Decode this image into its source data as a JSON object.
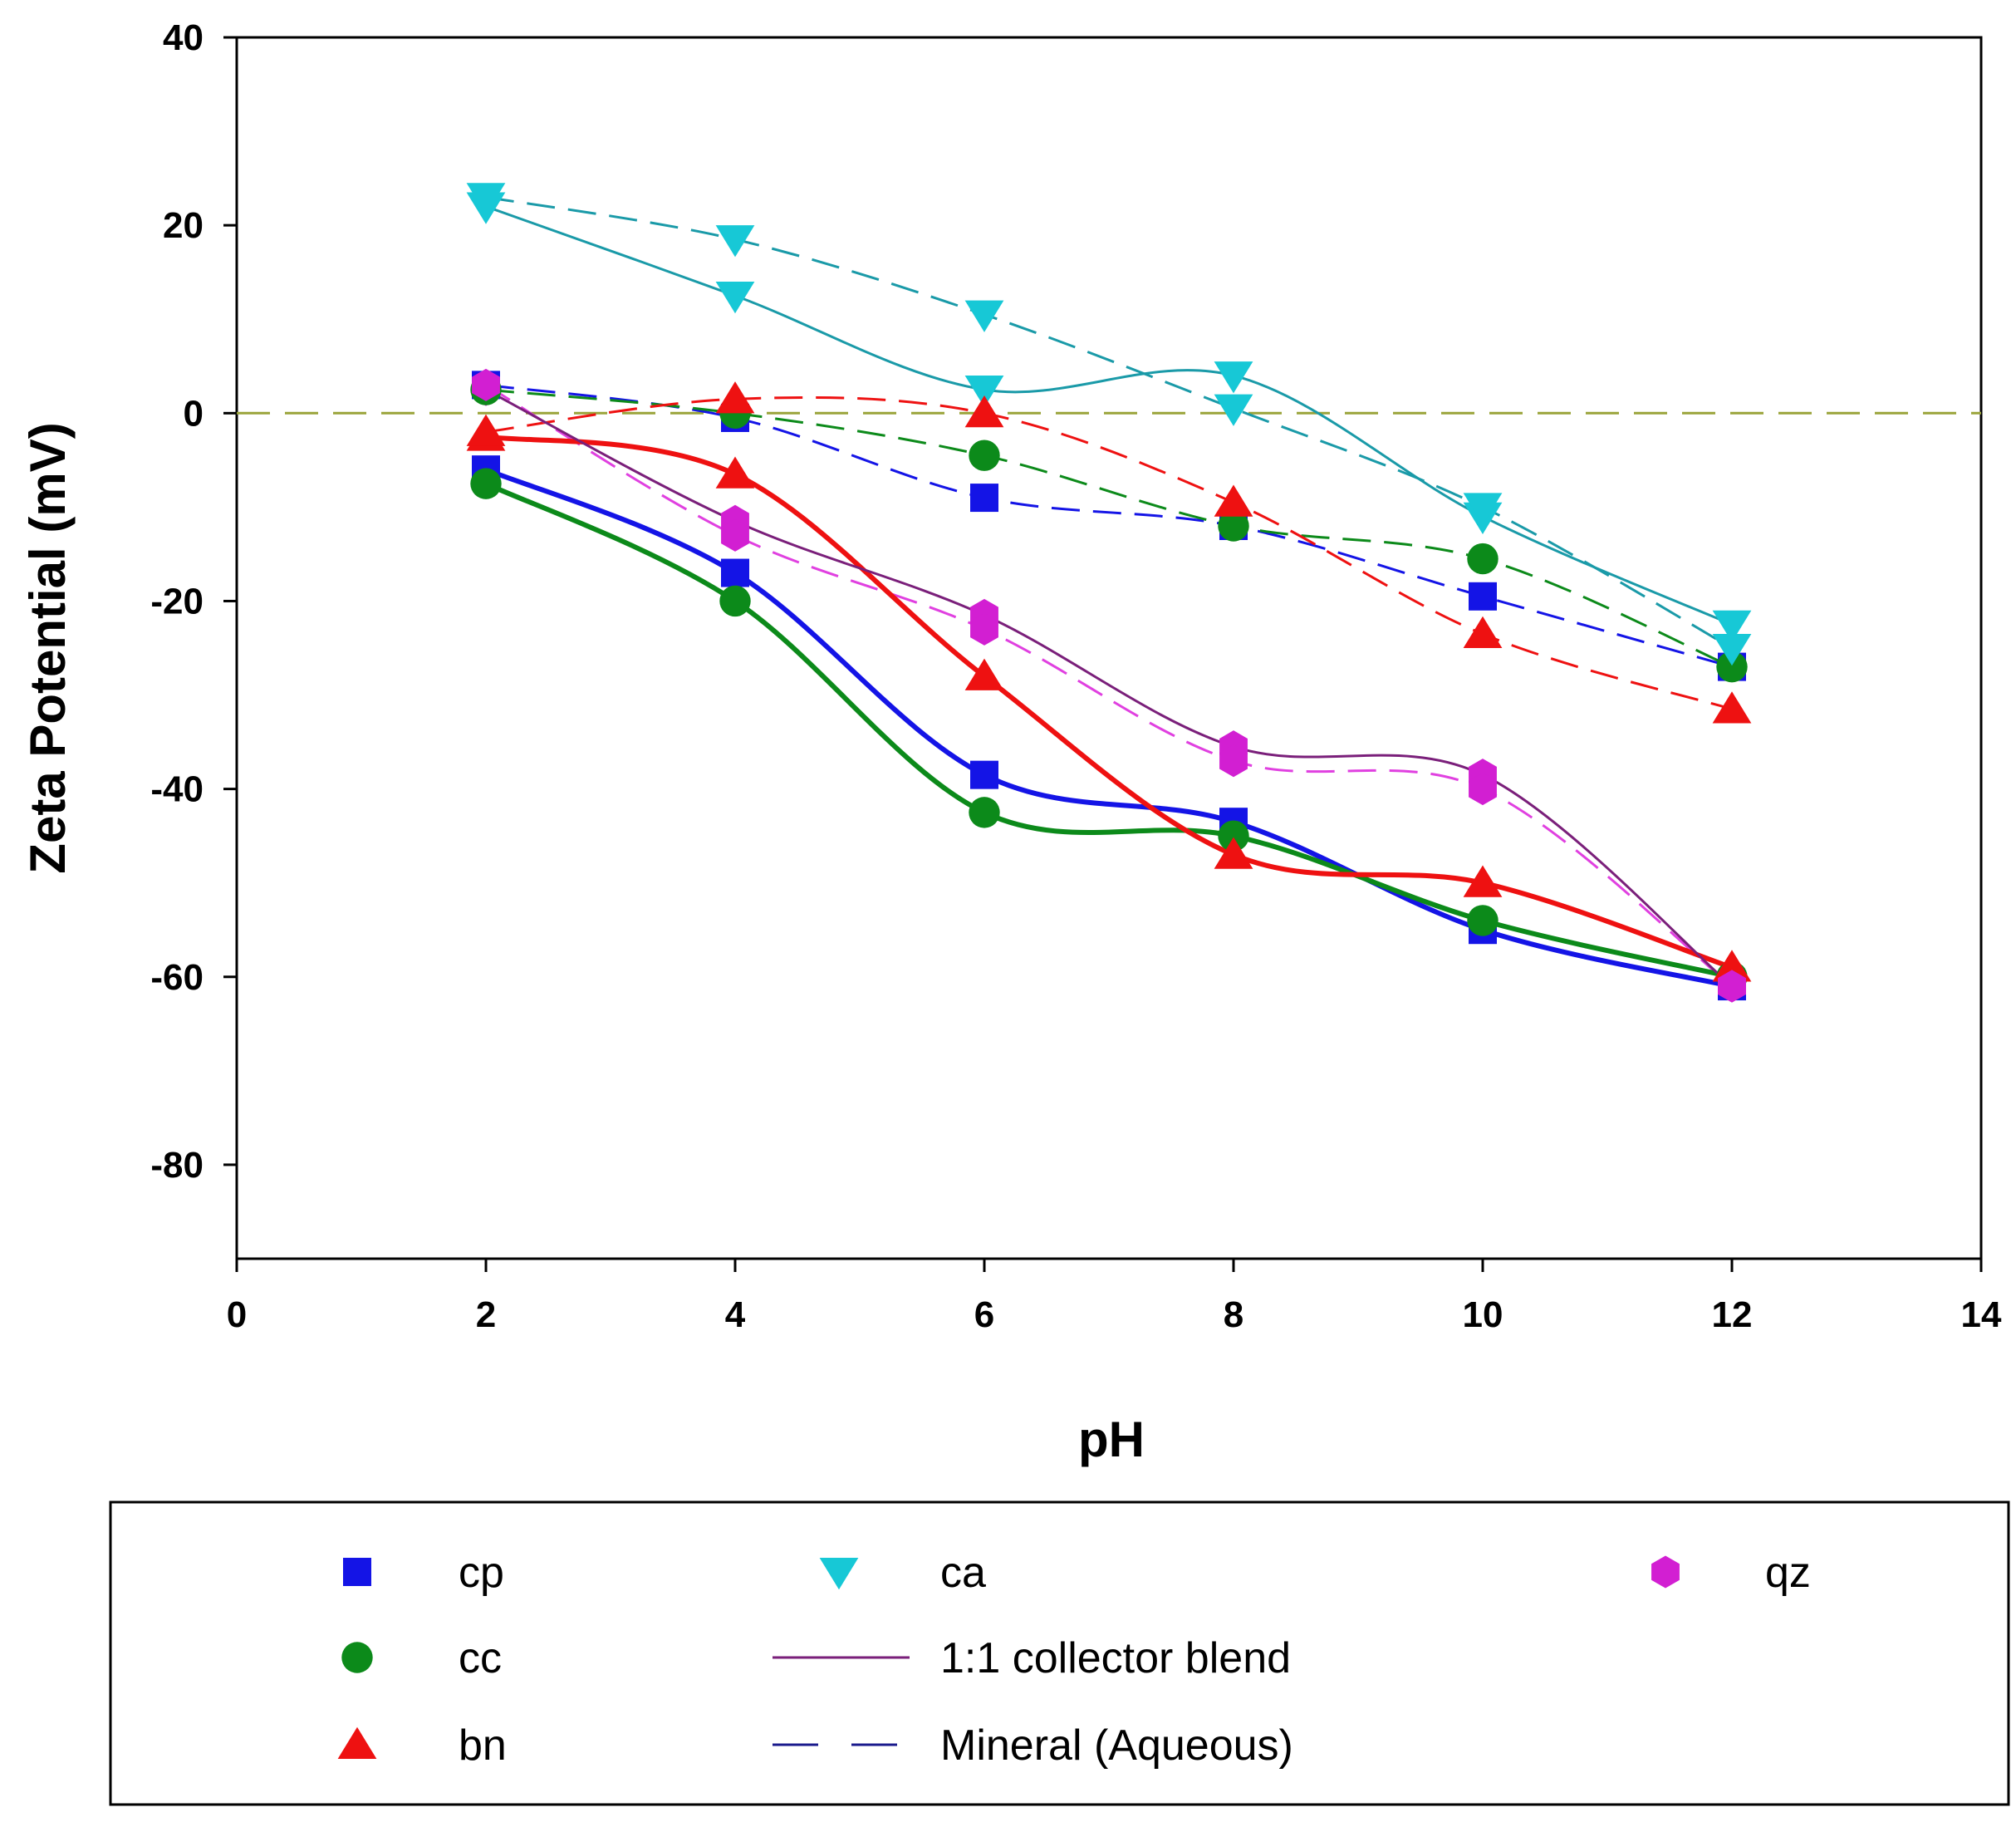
{
  "chart_data": {
    "type": "line",
    "xlabel": "pH",
    "ylabel": "Zeta Potential (mV)",
    "xlim": [
      0,
      14
    ],
    "ylim": [
      -90,
      40
    ],
    "x_ticks": [
      0,
      2,
      4,
      6,
      8,
      10,
      12,
      14
    ],
    "y_ticks": [
      -80,
      -60,
      -40,
      -20,
      0,
      20,
      40
    ],
    "reference_line": {
      "y": 0,
      "color": "#9aa43a"
    },
    "series": [
      {
        "name": "cp",
        "minerals": "cp",
        "color": "#1414e6",
        "line_color": "#1414e6",
        "marker": "square",
        "style": "solid",
        "x": [
          2,
          4,
          6,
          8,
          10,
          12
        ],
        "values": [
          -6,
          -17,
          -38.5,
          -43.5,
          -55,
          -61
        ]
      },
      {
        "name": "cc",
        "minerals": "cc",
        "color": "#0c8a1a",
        "line_color": "#0c8a1a",
        "marker": "circle",
        "style": "solid",
        "x": [
          2,
          4,
          6,
          8,
          10,
          12
        ],
        "values": [
          -7.5,
          -20,
          -42.5,
          -45,
          -54,
          -60
        ]
      },
      {
        "name": "bn",
        "minerals": "bn",
        "color": "#ee1111",
        "line_color": "#ee1111",
        "marker": "triangle-up",
        "style": "solid",
        "x": [
          2,
          4,
          6,
          8,
          10,
          12
        ],
        "values": [
          -2.5,
          -6.5,
          -28,
          -47,
          -50,
          -59
        ]
      },
      {
        "name": "ca",
        "minerals": "ca",
        "color": "#17c8d6",
        "line_color": "#1a9aa8",
        "marker": "triangle-down",
        "style": "solid",
        "x": [
          2,
          4,
          6,
          8,
          10,
          12
        ],
        "values": [
          22,
          12.5,
          2.5,
          4,
          -11,
          -22.5
        ]
      },
      {
        "name": "qz",
        "minerals": "qz",
        "color": "#d21fd2",
        "line_color": "#7a1f7a",
        "marker": "hexagon",
        "style": "solid",
        "x": [
          2,
          4,
          6,
          8,
          10,
          12
        ],
        "values": [
          2.5,
          -11.5,
          -21.5,
          -35.5,
          -38.5,
          -61
        ]
      },
      {
        "name": "cp (aqueous)",
        "minerals": "cp",
        "color": "#1414e6",
        "line_color": "#1414e6",
        "marker": "square",
        "style": "dashed",
        "x": [
          2,
          4,
          6,
          8,
          10,
          12
        ],
        "values": [
          3,
          -0.5,
          -9,
          -12,
          -19.5,
          -27
        ]
      },
      {
        "name": "cc (aqueous)",
        "minerals": "cc",
        "color": "#0c8a1a",
        "line_color": "#0c8a1a",
        "marker": "circle",
        "style": "dashed",
        "x": [
          2,
          4,
          6,
          8,
          10,
          12
        ],
        "values": [
          2.5,
          0,
          -4.5,
          -12,
          -15.5,
          -27
        ]
      },
      {
        "name": "bn (aqueous)",
        "minerals": "bn",
        "color": "#ee1111",
        "line_color": "#ee1111",
        "marker": "triangle-up",
        "style": "dashed",
        "x": [
          2,
          4,
          6,
          8,
          10,
          12
        ],
        "values": [
          -2,
          1.5,
          0,
          -9.5,
          -23.5,
          -31.5
        ]
      },
      {
        "name": "ca (aqueous)",
        "minerals": "ca",
        "color": "#17c8d6",
        "line_color": "#1a9aa8",
        "marker": "triangle-down",
        "style": "dashed",
        "x": [
          2,
          4,
          6,
          8,
          10,
          12
        ],
        "values": [
          23,
          18.5,
          10.5,
          0.5,
          -10,
          -25
        ]
      },
      {
        "name": "qz (aqueous)",
        "minerals": "qz",
        "color": "#d21fd2",
        "line_color": "#e040e0",
        "marker": "hexagon",
        "style": "dashed",
        "x": [
          2,
          4,
          6,
          8,
          10,
          12
        ],
        "values": [
          3,
          -13,
          -23,
          -37,
          -40,
          -61
        ]
      }
    ],
    "legend": {
      "position": "bottom",
      "entries": [
        {
          "label": "cp",
          "kind": "marker",
          "marker": "square",
          "color": "#1414e6"
        },
        {
          "label": "ca",
          "kind": "marker",
          "marker": "triangle-down",
          "color": "#17c8d6"
        },
        {
          "label": "qz",
          "kind": "marker",
          "marker": "hexagon",
          "color": "#d21fd2"
        },
        {
          "label": "cc",
          "kind": "marker",
          "marker": "circle",
          "color": "#0c8a1a"
        },
        {
          "label": "1:1 collector blend",
          "kind": "line",
          "style": "solid",
          "color": "#7a1f7a"
        },
        {
          "label": "bn",
          "kind": "marker",
          "marker": "triangle-up",
          "color": "#ee1111"
        },
        {
          "label": "Mineral (Aqueous)",
          "kind": "line",
          "style": "dashed",
          "color": "#1a1a8c"
        }
      ]
    }
  }
}
